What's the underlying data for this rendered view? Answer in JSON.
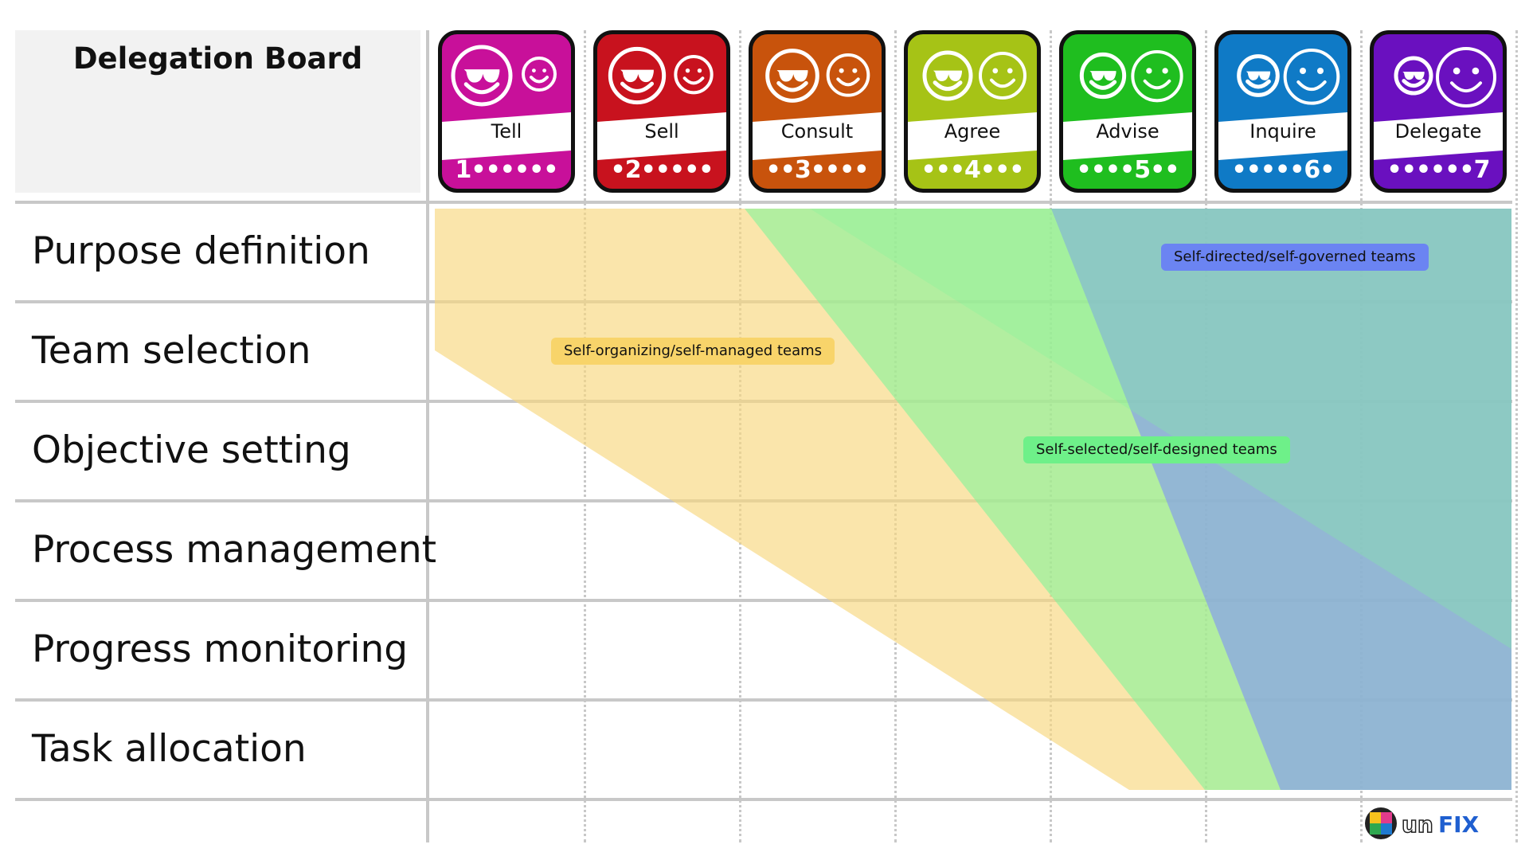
{
  "board": {
    "title": "Delegation Board",
    "rows": [
      "Purpose definition",
      "Team selection",
      "Objective setting",
      "Process management",
      "Progress monitoring",
      "Task allocation"
    ],
    "levels": [
      {
        "name": "Tell",
        "scale": "1••••••",
        "color": "#c8109a"
      },
      {
        "name": "Sell",
        "scale": "•2•••••",
        "color": "#c8121e"
      },
      {
        "name": "Consult",
        "scale": "••3••••",
        "color": "#c8530c"
      },
      {
        "name": "Agree",
        "scale": "•••4•••",
        "color": "#a6c316"
      },
      {
        "name": "Advise",
        "scale": "••••5••",
        "color": "#1fbe1f"
      },
      {
        "name": "Inquire",
        "scale": "•••••6•",
        "color": "#0f7ac6"
      },
      {
        "name": "Delegate",
        "scale": "••••••7",
        "color": "#6a10bf"
      }
    ],
    "regions": [
      {
        "label": "Self-organizing/self-managed teams",
        "fill": "#f8d77e",
        "label_bg": "#f8d46a"
      },
      {
        "label": "Self-selected/self-designed teams",
        "fill": "#82f49a",
        "label_bg": "#6ef089"
      },
      {
        "label": "Self-directed/self-governed teams",
        "fill": "#7e92f7",
        "label_bg": "#6b84f2"
      }
    ]
  },
  "logo": {
    "text_un": "un",
    "text_fix": "FIX"
  }
}
